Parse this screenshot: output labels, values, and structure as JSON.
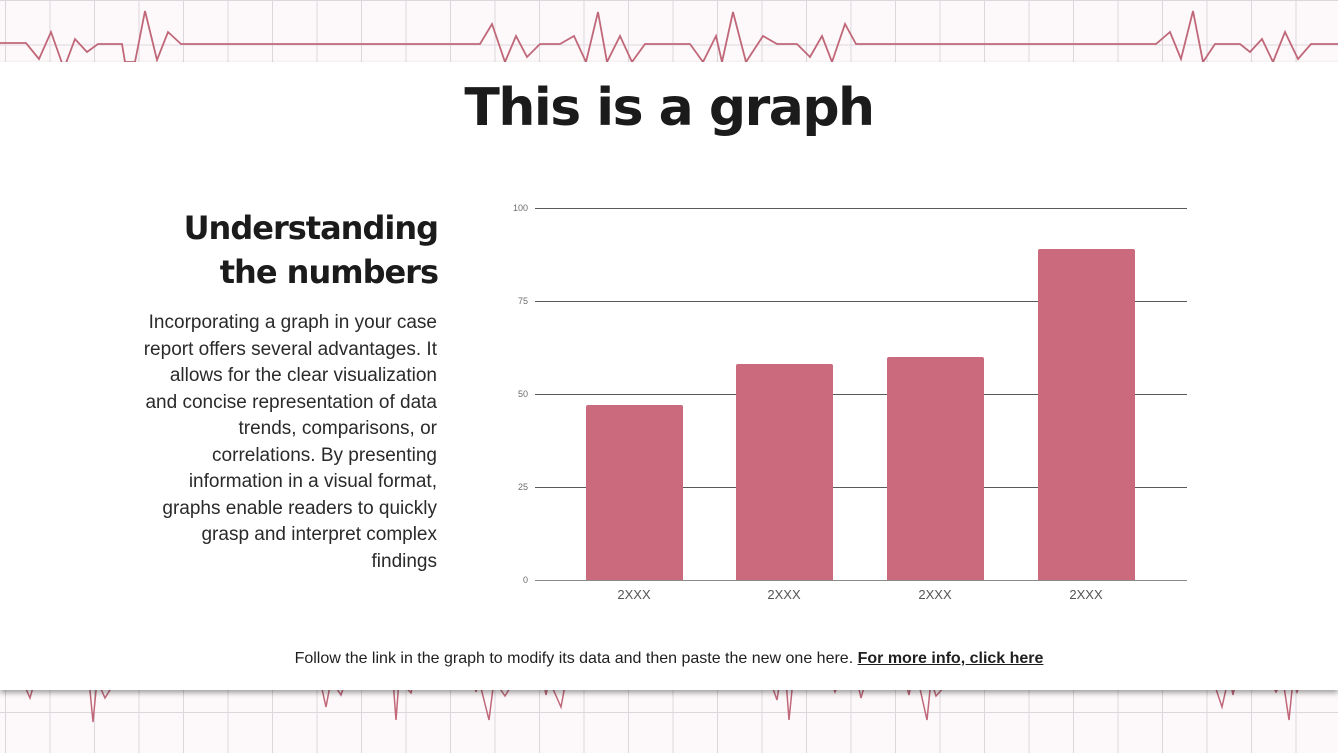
{
  "slide": {
    "title": "This is a graph",
    "subtitle": "Understanding the numbers",
    "body": "Incorporating a graph in your case report offers several advantages. It allows for the clear visualization and concise representation of data trends, comparisons, or correlations. By presenting information in a visual format, graphs enable readers to quickly grasp and interpret complex findings",
    "footer_text": "Follow the link in the graph to modify its data and then paste the new one here.",
    "footer_link": "For more info, click here"
  },
  "colors": {
    "bar": "#ca6a7c",
    "ecg_line": "#c0687a",
    "text": "#1b1b1b",
    "background_grid": "#dcd7dc"
  },
  "chart_data": {
    "type": "bar",
    "title": "",
    "xlabel": "",
    "ylabel": "",
    "categories": [
      "2XXX",
      "2XXX",
      "2XXX",
      "2XXX"
    ],
    "values": [
      47,
      58,
      60,
      89
    ],
    "ylim": [
      0,
      100
    ],
    "yticks": [
      0,
      25,
      50,
      75,
      100
    ],
    "grid": true,
    "legend": null
  }
}
